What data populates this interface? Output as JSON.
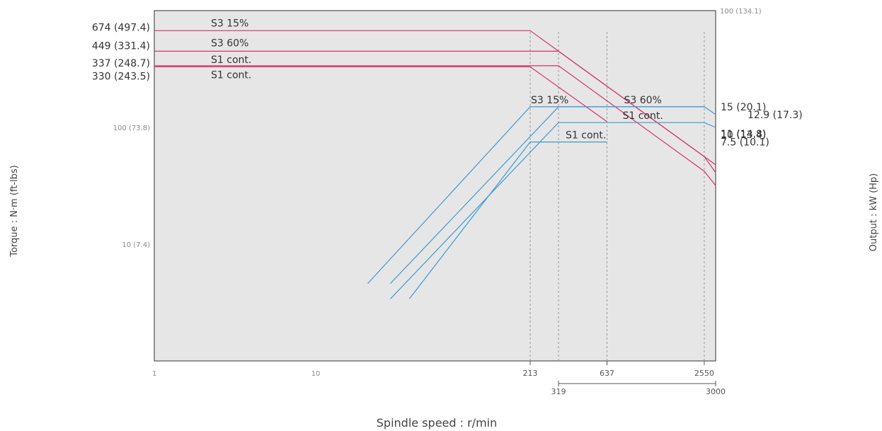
{
  "chart_data": {
    "type": "line",
    "title": "",
    "xlabel": "Spindle speed : r/min",
    "ylabel_left": "Torque : N·m (ft-lbs)",
    "ylabel_right": "Output : kW (Hp)",
    "x_scale": "log",
    "y_scale": "log",
    "xlim": [
      1,
      3000
    ],
    "grid": false,
    "background_color": "#e6e6e6",
    "left_axis": {
      "ylim": [
        1,
        1000
      ],
      "tick_labels": [
        {
          "value": 10,
          "label": "10 (7.4)"
        },
        {
          "value": 100,
          "label": "100 (73.8)"
        }
      ]
    },
    "right_axis": {
      "ylim": [
        0.1,
        100
      ],
      "tick_labels": [
        {
          "value": 100,
          "label": "100 (134.1)"
        }
      ]
    },
    "x_ticks": [
      {
        "value": 1,
        "label": "1"
      },
      {
        "value": 10,
        "label": "10"
      },
      {
        "value": 213,
        "label": "213"
      },
      {
        "value": 637,
        "label": "637"
      },
      {
        "value": 2550,
        "label": "2550"
      }
    ],
    "x_ticks_lower": [
      {
        "value": 319,
        "label": "319"
      },
      {
        "value": 3000,
        "label": "3000"
      }
    ],
    "reference_speeds": [
      213,
      319,
      637,
      2550
    ],
    "torque_series": [
      {
        "name": "S3 15%",
        "color": "#d6336c",
        "axis": "left",
        "points": [
          [
            1,
            674
          ],
          [
            213,
            674
          ],
          [
            3000,
            47.8
          ]
        ]
      },
      {
        "name": "S3 60%",
        "color": "#d6336c",
        "axis": "left",
        "points": [
          [
            1,
            449
          ],
          [
            319,
            449
          ],
          [
            2550,
            56.2
          ],
          [
            3000,
            41.0
          ]
        ]
      },
      {
        "name": "S1 cont.",
        "color": "#d6336c",
        "axis": "left",
        "points": [
          [
            1,
            337
          ],
          [
            319,
            337
          ],
          [
            2550,
            42.1
          ],
          [
            3000,
            31.8
          ]
        ]
      },
      {
        "name": "S1 cont.",
        "color": "#d6336c",
        "axis": "left",
        "points": [
          [
            1,
            330
          ],
          [
            213,
            330
          ],
          [
            637,
            112
          ]
        ]
      }
    ],
    "output_series": [
      {
        "name": "S3 15%",
        "color": "#3d9ad6",
        "axis": "right",
        "points": [
          [
            21,
            0.46
          ],
          [
            213,
            15
          ],
          [
            2550,
            15
          ],
          [
            3000,
            12.9
          ]
        ]
      },
      {
        "name": "S3 60%",
        "color": "#3d9ad6",
        "axis": "right",
        "points": [
          [
            29,
            0.46
          ],
          [
            319,
            15
          ],
          [
            2550,
            15
          ]
        ]
      },
      {
        "name": "S1 cont.",
        "color": "#3d9ad6",
        "axis": "right",
        "points": [
          [
            29,
            0.34
          ],
          [
            319,
            11
          ],
          [
            2550,
            11
          ],
          [
            3000,
            10
          ]
        ]
      },
      {
        "name": "S1 cont.",
        "color": "#3d9ad6",
        "axis": "right",
        "points": [
          [
            38,
            0.34
          ],
          [
            213,
            7.5
          ],
          [
            637,
            7.5
          ]
        ]
      }
    ],
    "left_value_labels": [
      "674 (497.4)",
      "449 (331.4)",
      "337 (248.7)",
      "330 (243.5)"
    ],
    "right_value_labels": [
      "15 (20.1)",
      "12.9 (17.3)",
      "11 (14.8)",
      "10 (13.4)",
      "7.5 (10.1)"
    ],
    "curve_labels": {
      "torque": [
        "S3 15%",
        "S3 60%",
        "S1 cont.",
        "S1 cont."
      ],
      "output": [
        "S3 15%",
        "S3 60%",
        "S1 cont.",
        "S1 cont."
      ]
    }
  }
}
